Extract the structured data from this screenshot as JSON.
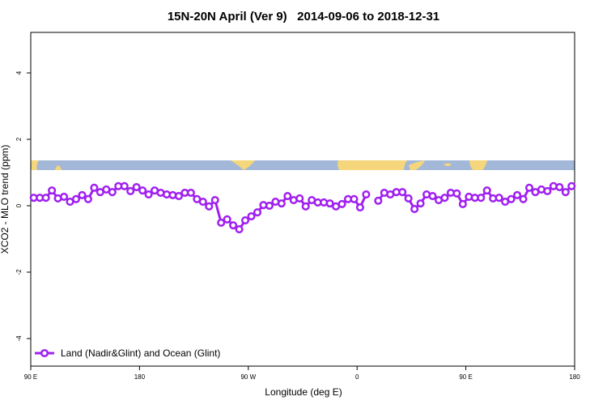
{
  "chart_data": {
    "type": "line",
    "title": "15N-20N April (Ver 9)   2014-09-06 to 2018-12-31",
    "xlabel": "Longitude (deg E)",
    "ylabel": "XCO2 - MLO trend (ppm)",
    "xlim": [
      90,
      540
    ],
    "ylim": [
      -4.83,
      5.22
    ],
    "xticks": [
      {
        "value": 90,
        "label": "90 E"
      },
      180,
      {
        "value": 270,
        "label": "90 W"
      },
      {
        "value": 360,
        "label": "0"
      },
      {
        "value": 450,
        "label": "90 E"
      },
      {
        "value": 540,
        "label": "180"
      }
    ],
    "yticks": [
      -4,
      -2,
      0,
      2,
      4
    ],
    "legend": "bottom-left",
    "x": [
      92.5,
      97.5,
      102.5,
      107.5,
      112.5,
      117.5,
      122.5,
      127.5,
      132.5,
      137.5,
      142.5,
      147.5,
      152.5,
      157.5,
      162.5,
      167.5,
      172.5,
      177.5,
      182.5,
      187.5,
      192.5,
      197.5,
      202.5,
      207.5,
      212.5,
      217.5,
      222.5,
      227.5,
      232.5,
      237.5,
      242.5,
      247.5,
      252.5,
      257.5,
      262.5,
      267.5,
      272.5,
      277.5,
      282.5,
      287.5,
      292.5,
      297.5,
      302.5,
      307.5,
      312.5,
      317.5,
      322.5,
      327.5,
      332.5,
      337.5,
      342.5,
      347.5,
      352.5,
      357.5,
      362.5,
      367.5,
      372.5,
      377.5,
      382.5,
      387.5,
      392.5,
      397.5,
      402.5,
      407.5,
      412.5,
      417.5,
      422.5,
      427.5,
      432.5,
      437.5,
      442.5,
      447.5,
      452.5,
      457.5,
      462.5,
      467.5,
      472.5,
      477.5,
      482.5,
      487.5,
      492.5,
      497.5,
      502.5,
      507.5,
      512.5,
      517.5,
      522.5,
      527.5,
      532.5,
      537.5
    ],
    "series": [
      {
        "name": "Land (Nadir&Glint) and Ocean (Glint)",
        "color": "#a020f0",
        "values": [
          0.24,
          0.24,
          0.24,
          0.46,
          0.22,
          0.27,
          0.12,
          0.2,
          0.32,
          0.2,
          0.54,
          0.41,
          0.49,
          0.41,
          0.59,
          0.59,
          0.44,
          0.56,
          0.46,
          0.34,
          0.46,
          0.39,
          0.34,
          0.32,
          0.29,
          0.39,
          0.39,
          0.2,
          0.12,
          -0.02,
          0.17,
          -0.51,
          -0.41,
          -0.59,
          -0.71,
          -0.44,
          -0.32,
          -0.2,
          0.02,
          0,
          0.12,
          0.07,
          0.29,
          0.17,
          0.22,
          -0.02,
          0.17,
          0.1,
          0.1,
          0.07,
          -0.02,
          0.05,
          0.2,
          0.2,
          -0.05,
          0.34,
          null,
          0.15,
          0.39,
          0.34,
          0.41,
          0.41,
          0.22,
          -0.1,
          0.07,
          0.34,
          0.29,
          0.17,
          0.24,
          0.39,
          0.37,
          0.05,
          0.27,
          0.24,
          0.24,
          0.46,
          0.22,
          0.24,
          0.12,
          0.2,
          0.32,
          0.2,
          0.54,
          0.41,
          0.49,
          0.44,
          0.59,
          0.56,
          0.41,
          0.59
        ]
      }
    ]
  }
}
